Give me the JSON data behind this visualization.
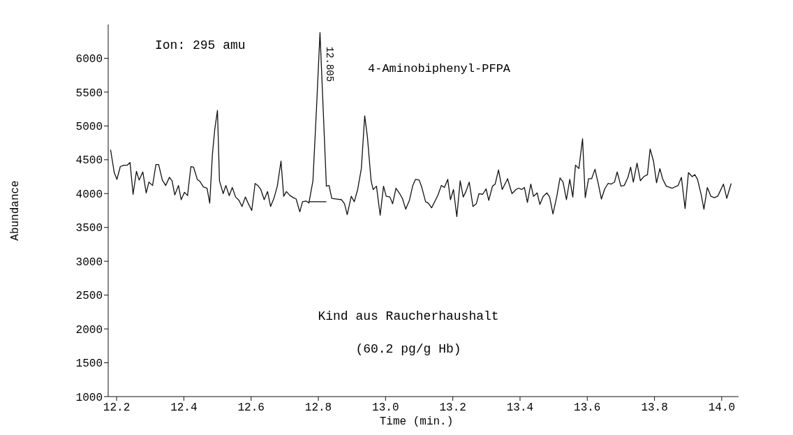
{
  "chart_data": {
    "type": "line",
    "title": "4-Aminobiphenyl-PFPA",
    "xlabel": "Time (min.)",
    "ylabel": "Abundance",
    "annotations": [
      "Ion: 295 amu",
      "Kind aus Raucherhaushalt",
      "(60.2 pg/g Hb)",
      {
        "text": "12.805",
        "x": 12.805,
        "y": 6380
      }
    ],
    "xlim": [
      12.175,
      14.05
    ],
    "ylim": [
      1000,
      6500
    ],
    "xticks": [
      12.2,
      12.4,
      12.6,
      12.8,
      {
        "value": 13,
        "label": "13.0"
      },
      13.2,
      13.4,
      13.6,
      13.8,
      {
        "value": 14,
        "label": "14.0"
      }
    ],
    "yticks": [
      1000,
      1500,
      2000,
      2500,
      3000,
      3500,
      4000,
      4500,
      5000,
      5500,
      6000
    ],
    "grid": false,
    "marker": "none",
    "line_style": "solid",
    "series": [
      {
        "color": "#111111",
        "x": [
          12.182,
          12.193,
          12.201,
          12.211,
          12.222,
          12.232,
          12.24,
          12.249,
          12.259,
          12.267,
          12.278,
          12.288,
          12.296,
          12.307,
          12.317,
          12.325,
          12.336,
          12.346,
          12.357,
          12.365,
          12.373,
          12.384,
          12.392,
          12.402,
          12.411,
          12.421,
          12.429,
          12.44,
          12.448,
          12.458,
          12.469,
          12.477,
          12.485,
          12.492,
          12.5,
          12.506,
          12.517,
          12.525,
          12.535,
          12.544,
          12.554,
          12.564,
          12.573,
          12.583,
          12.591,
          12.602,
          12.612,
          12.62,
          12.629,
          12.639,
          12.649,
          12.658,
          12.668,
          12.678,
          12.689,
          12.697,
          12.705,
          12.716,
          12.726,
          12.734,
          12.745,
          12.753,
          12.764,
          12.772,
          12.784,
          12.795,
          12.805,
          12.824,
          12.832,
          12.84,
          12.855,
          12.869,
          12.878,
          12.886,
          12.898,
          12.907,
          12.917,
          12.928,
          12.938,
          12.946,
          12.957,
          12.963,
          12.973,
          12.984,
          12.994,
          13.002,
          13.013,
          13.021,
          13.031,
          13.042,
          13.05,
          13.06,
          13.071,
          13.081,
          13.089,
          13.1,
          13.108,
          13.119,
          13.127,
          13.137,
          13.148,
          13.156,
          13.166,
          13.175,
          13.185,
          13.193,
          13.202,
          13.212,
          13.222,
          13.231,
          13.239,
          13.249,
          13.26,
          13.27,
          13.278,
          13.289,
          13.299,
          13.307,
          13.318,
          13.326,
          13.336,
          13.347,
          13.363,
          13.376,
          13.388,
          13.395,
          13.405,
          13.413,
          13.422,
          13.432,
          13.44,
          13.451,
          13.459,
          13.469,
          13.48,
          13.488,
          13.498,
          13.509,
          13.519,
          13.528,
          13.538,
          13.548,
          13.557,
          13.565,
          13.575,
          13.586,
          13.594,
          13.604,
          13.613,
          13.623,
          13.633,
          13.642,
          13.652,
          13.662,
          13.671,
          13.681,
          13.689,
          13.7,
          13.71,
          13.721,
          13.729,
          13.737,
          13.748,
          13.758,
          13.768,
          13.779,
          13.787,
          13.797,
          13.806,
          13.816,
          13.824,
          13.835,
          13.853,
          13.87,
          13.88,
          13.891,
          13.901,
          13.912,
          13.92,
          13.928,
          13.939,
          13.947,
          13.957,
          13.968,
          13.978,
          13.988,
          14.005,
          14.015,
          14.028
        ],
        "values": [
          4650,
          4310,
          4210,
          4400,
          4420,
          4420,
          4460,
          3990,
          4330,
          4200,
          4320,
          4010,
          4170,
          4120,
          4430,
          4430,
          4200,
          4120,
          4240,
          4190,
          3980,
          4120,
          3910,
          4020,
          3970,
          4400,
          4390,
          4210,
          4180,
          4100,
          4080,
          3860,
          4580,
          4950,
          5230,
          4190,
          4000,
          4120,
          3970,
          4090,
          3950,
          3900,
          3810,
          3950,
          3860,
          3750,
          4150,
          4120,
          4060,
          3910,
          4030,
          3810,
          3930,
          4110,
          4480,
          3960,
          4030,
          3970,
          3940,
          3920,
          3730,
          3880,
          3890,
          3860,
          4190,
          5300,
          6380,
          4110,
          4120,
          3930,
          3920,
          3910,
          3850,
          3690,
          3960,
          3880,
          4060,
          4370,
          5150,
          4840,
          4190,
          4060,
          4110,
          3680,
          4110,
          3960,
          3950,
          3850,
          4080,
          4000,
          3930,
          3770,
          3900,
          4120,
          4210,
          4200,
          4090,
          3880,
          3860,
          3790,
          3900,
          3980,
          4120,
          4090,
          4210,
          3910,
          4060,
          3660,
          4190,
          3950,
          4030,
          4170,
          3810,
          3850,
          4000,
          3990,
          4070,
          3900,
          4110,
          4140,
          4350,
          4060,
          4220,
          4000,
          4060,
          4080,
          4060,
          4090,
          3870,
          4140,
          3960,
          4010,
          3840,
          3960,
          4010,
          3950,
          3700,
          3950,
          4230,
          4170,
          3910,
          4210,
          3950,
          4420,
          4370,
          4810,
          3940,
          4220,
          4220,
          4360,
          4140,
          3920,
          4070,
          4150,
          4140,
          4170,
          4320,
          4110,
          4120,
          4240,
          4390,
          4170,
          4450,
          4190,
          4250,
          4280,
          4660,
          4480,
          4160,
          4370,
          4220,
          4110,
          4080,
          4120,
          4240,
          3780,
          4310,
          4250,
          4280,
          4210,
          3980,
          3770,
          4090,
          3960,
          3940,
          3960,
          4140,
          3930,
          4150
        ]
      },
      {
        "color": "#111111",
        "x": [
          12.772,
          12.824
        ],
        "values": [
          3880,
          3880
        ]
      }
    ]
  }
}
